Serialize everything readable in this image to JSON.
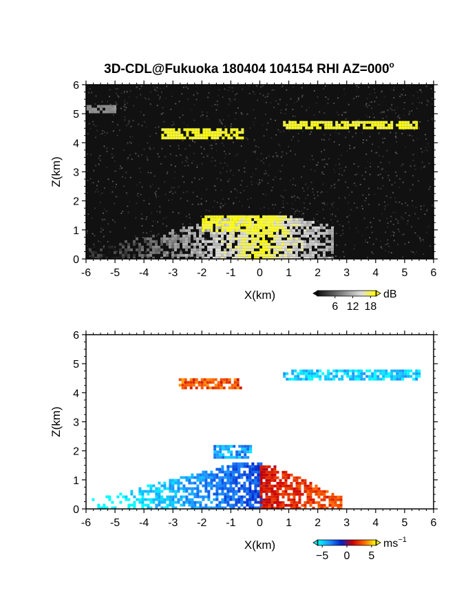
{
  "title": "3D-CDL@Fukuoka 180404 104154 RHI AZ=000",
  "title_degree": "o",
  "chart_data": [
    {
      "type": "heatmap",
      "panel": "reflectivity",
      "xlabel": "X(km)",
      "ylabel": "Z(km)",
      "xlim": [
        -6,
        6
      ],
      "ylim": [
        0,
        6
      ],
      "x_ticks": [
        "-6",
        "-5",
        "-4",
        "-3",
        "-2",
        "-1",
        "0",
        "1",
        "2",
        "3",
        "4",
        "5",
        "6"
      ],
      "y_ticks": [
        "0",
        "1",
        "2",
        "3",
        "4",
        "5",
        "6"
      ],
      "colorbar": {
        "unit": "dB",
        "ticks": [
          "6",
          "12",
          "18"
        ],
        "range": [
          0,
          20
        ],
        "colors": [
          "#111111",
          "#555555",
          "#9a9a9a",
          "#dddddd",
          "#ffff00"
        ]
      },
      "background_color": "#111111",
      "features": [
        {
          "name": "low-level fan",
          "x_range": [
            -6,
            2.5
          ],
          "z_range": [
            0,
            1.5
          ],
          "value": "high"
        },
        {
          "name": "cloud layer left",
          "x_range": [
            -3.4,
            -0.6
          ],
          "z_range": [
            4.2,
            4.5
          ],
          "value": 18
        },
        {
          "name": "cloud layer right",
          "x_range": [
            0.8,
            5.4
          ],
          "z_range": [
            4.5,
            4.75
          ],
          "value": 18
        },
        {
          "name": "upper echo",
          "x_range": [
            -6,
            -5
          ],
          "z_range": [
            5.1,
            5.3
          ],
          "value": 8
        },
        {
          "name": "near-field echo",
          "x_range": [
            -2,
            0.6
          ],
          "z_range": [
            1.0,
            1.5
          ],
          "value": 18
        }
      ]
    },
    {
      "type": "heatmap",
      "panel": "doppler-velocity",
      "xlabel": "X(km)",
      "ylabel": "Z(km)",
      "xlim": [
        -6,
        6
      ],
      "ylim": [
        0,
        6
      ],
      "x_ticks": [
        "-6",
        "-5",
        "-4",
        "-3",
        "-2",
        "-1",
        "0",
        "1",
        "2",
        "3",
        "4",
        "5",
        "6"
      ],
      "y_ticks": [
        "0",
        "1",
        "2",
        "3",
        "4",
        "5",
        "6"
      ],
      "colorbar": {
        "unit": "ms",
        "unit_exp": "−1",
        "ticks": [
          "−5",
          "0",
          "5"
        ],
        "range": [
          -6,
          6
        ],
        "colors": [
          "#00ffff",
          "#1e90ff",
          "#0022cc",
          "#cc0000",
          "#ff6600",
          "#ffff00"
        ]
      },
      "background_color": "#ffffff",
      "features": [
        {
          "name": "negative fan",
          "x_range": [
            -5.8,
            0
          ],
          "z_range": [
            0,
            1.6
          ],
          "value": -4
        },
        {
          "name": "positive fan",
          "x_range": [
            0,
            2.8
          ],
          "z_range": [
            0,
            1.5
          ],
          "value": 3
        },
        {
          "name": "negative layer",
          "x_range": [
            0.8,
            5.5
          ],
          "z_range": [
            4.5,
            4.8
          ],
          "value": -5
        },
        {
          "name": "positive layer",
          "x_range": [
            -2.8,
            -0.7
          ],
          "z_range": [
            4.2,
            4.5
          ],
          "value": 3
        },
        {
          "name": "negative upper",
          "x_range": [
            -1.6,
            -0.3
          ],
          "z_range": [
            1.8,
            2.2
          ],
          "value": -4
        }
      ]
    }
  ]
}
